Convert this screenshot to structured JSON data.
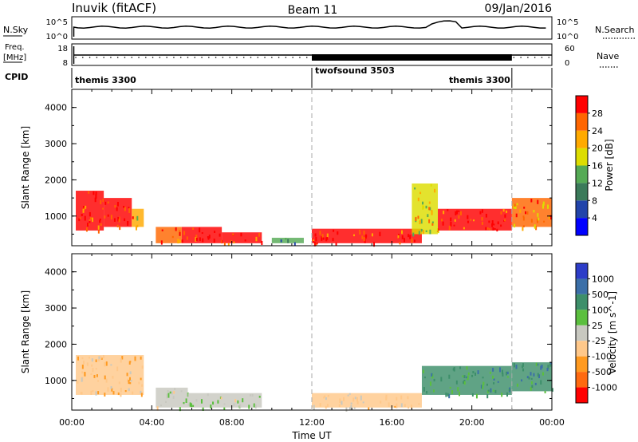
{
  "header": {
    "station": "Inuvik (fitACF)",
    "beam": "Beam 11",
    "date": "09/Jan/2016"
  },
  "top_panel": {
    "left_label": "N.Sky",
    "left_ticks": [
      "10^5",
      "10^0"
    ],
    "right_ticks": [
      "10^5",
      "10^0"
    ],
    "right_label": "N.Search"
  },
  "freq_panel": {
    "left_label_line1": "Freq.",
    "left_label_line2": "[MHz]",
    "left_ticks": [
      "18",
      "8"
    ],
    "right_ticks": [
      "60",
      "0"
    ],
    "right_label": "Nave"
  },
  "cpid": {
    "label": "CPID",
    "segments": [
      {
        "name": "themis 3300",
        "start_hour": 0,
        "end_hour": 12
      },
      {
        "name": "twofsound 3503",
        "start_hour": 12,
        "end_hour": 22
      },
      {
        "name": "themis 3300",
        "start_hour": 22,
        "end_hour": 24
      }
    ]
  },
  "x_axis": {
    "label": "Time UT",
    "ticks": [
      "00:00",
      "04:00",
      "08:00",
      "12:00",
      "16:00",
      "20:00",
      "00:00"
    ],
    "range_hours": [
      0,
      24
    ]
  },
  "y_axis": {
    "label": "Slant Range [km]",
    "ticks": [
      "1000",
      "2000",
      "3000",
      "4000"
    ],
    "range_km": [
      180,
      4500
    ]
  },
  "power_colorbar": {
    "label": "Power [dB]",
    "ticks": [
      "4",
      "8",
      "12",
      "16",
      "20",
      "24",
      "28"
    ]
  },
  "velocity_colorbar": {
    "label": "Velocity [m s^-1]",
    "ticks": [
      "1000",
      "500",
      "100",
      "25",
      "-25",
      "-100",
      "-500",
      "-1000"
    ]
  },
  "colors": {
    "power_scale": [
      "#0000ff",
      "#2244aa",
      "#3b7a5a",
      "#55aa55",
      "#dddd00",
      "#ffaa00",
      "#ff6600",
      "#ff0000"
    ],
    "velocity_scale": [
      "#2d3dc8",
      "#3b6fa8",
      "#3d8f6a",
      "#5bbf3e",
      "#c8c8c0",
      "#ffc88a",
      "#ff9a20",
      "#ff6a10",
      "#ff0000"
    ]
  },
  "chart_data": [
    {
      "type": "heatmap",
      "title": "Power",
      "xlabel": "Time UT",
      "ylabel": "Slant Range [km]",
      "xlim": [
        0,
        24
      ],
      "ylim": [
        180,
        4500
      ],
      "colorbar_range_dB": [
        0,
        32
      ],
      "regions": [
        {
          "t0": 0.2,
          "t1": 1.6,
          "r0": 600,
          "r1": 1700,
          "value": 28
        },
        {
          "t0": 1.6,
          "t1": 3.0,
          "r0": 700,
          "r1": 1500,
          "value": 30
        },
        {
          "t0": 3.0,
          "t1": 3.6,
          "r0": 700,
          "r1": 1200,
          "value": 22
        },
        {
          "t0": 4.2,
          "t1": 5.5,
          "r0": 250,
          "r1": 700,
          "value": 26
        },
        {
          "t0": 5.5,
          "t1": 7.5,
          "r0": 250,
          "r1": 700,
          "value": 30
        },
        {
          "t0": 7.5,
          "t1": 9.5,
          "r0": 250,
          "r1": 550,
          "value": 28
        },
        {
          "t0": 10.0,
          "t1": 11.6,
          "r0": 250,
          "r1": 400,
          "value": 12
        },
        {
          "t0": 12.0,
          "t1": 17.5,
          "r0": 250,
          "r1": 650,
          "value": 28
        },
        {
          "t0": 17.0,
          "t1": 18.3,
          "r0": 500,
          "r1": 1900,
          "value": 18
        },
        {
          "t0": 18.3,
          "t1": 22.0,
          "r0": 600,
          "r1": 1200,
          "value": 30
        },
        {
          "t0": 22.0,
          "t1": 24.0,
          "r0": 700,
          "r1": 1500,
          "value": 24
        }
      ]
    },
    {
      "type": "heatmap",
      "title": "Velocity",
      "xlabel": "Time UT",
      "ylabel": "Slant Range [km]",
      "xlim": [
        0,
        24
      ],
      "ylim": [
        180,
        4500
      ],
      "colorbar_range_ms": [
        -1000,
        1000
      ],
      "regions": [
        {
          "t0": 0.2,
          "t1": 3.6,
          "r0": 600,
          "r1": 1700,
          "value": -300
        },
        {
          "t0": 4.2,
          "t1": 5.8,
          "r0": 250,
          "r1": 800,
          "value": 10
        },
        {
          "t0": 5.8,
          "t1": 9.5,
          "r0": 250,
          "r1": 650,
          "value": 90
        },
        {
          "t0": 12.0,
          "t1": 17.5,
          "r0": 250,
          "r1": 650,
          "value": -150
        },
        {
          "t0": 17.5,
          "t1": 22.0,
          "r0": 600,
          "r1": 1400,
          "value": 400
        },
        {
          "t0": 22.0,
          "t1": 24.0,
          "r0": 700,
          "r1": 1500,
          "value": 500
        }
      ]
    }
  ]
}
